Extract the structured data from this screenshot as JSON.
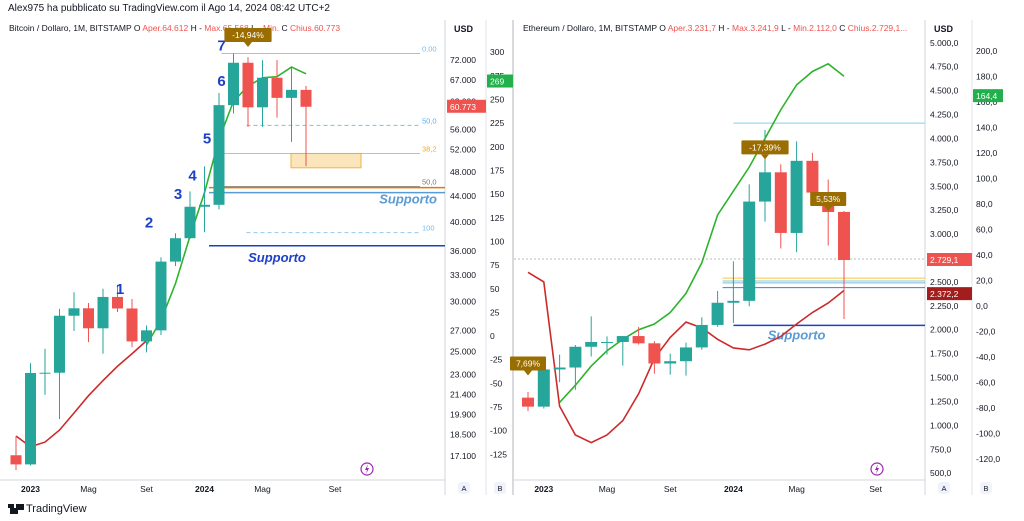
{
  "published_by": "Alex975 ha pubblicato su TradingView.com il Ago 14, 2024 08:42 UTC+2",
  "brand": "TradingView",
  "icons": {
    "brand": "tradingview-logo-icon",
    "flash": "lightning-icon"
  },
  "colors": {
    "up": "#26a69a",
    "down": "#ef5350",
    "green_line": "#2db32d",
    "red_line": "#cc2b2b",
    "support": "#1e40c8",
    "support_light": "#5b9bd5",
    "marker": "#9a6d00"
  },
  "chart_data": [
    {
      "type": "candlestick",
      "title": "Bitcoin / Dollaro, 1M, BITSTAMP",
      "ohlc_legend": {
        "o_label": "O",
        "open": "Aper.64.612",
        "h_label": "H",
        "high": "Max.65.568",
        "l_label": "L",
        "low": "Min.",
        "c_label": "C",
        "close": "Chius.60.773"
      },
      "y_axis_header": "USD",
      "x_ticks": [
        "2023",
        "Mag",
        "Set",
        "2024",
        "Mag",
        "Set"
      ],
      "y_ticks": [
        "72.000",
        "67.000",
        "62.000",
        "56.000",
        "52.000",
        "48.000",
        "44.000",
        "40.000",
        "36.000",
        "33.000",
        "30.000",
        "27.000",
        "25.000",
        "23.000",
        "21.400",
        "19.900",
        "18.500",
        "17.100"
      ],
      "y2_ticks": [
        "300",
        "275",
        "250",
        "225",
        "200",
        "175",
        "150",
        "125",
        "100",
        "75",
        "50",
        "25",
        "0",
        "-25",
        "-50",
        "-75",
        "-100",
        "-125"
      ],
      "log_scale": true,
      "ylim": [
        15800,
        78000
      ],
      "y2lim": [
        -150,
        315
      ],
      "dates": [
        "2022-12",
        "2023-01",
        "2023-02",
        "2023-03",
        "2023-04",
        "2023-05",
        "2023-06",
        "2023-07",
        "2023-08",
        "2023-09",
        "2023-10",
        "2023-11",
        "2023-12",
        "2024-01",
        "2024-02",
        "2024-03",
        "2024-04",
        "2024-05",
        "2024-06",
        "2024-07",
        "2024-08"
      ],
      "open": [
        17160,
        16600,
        23130,
        23150,
        28470,
        29250,
        27200,
        30480,
        29230,
        25940,
        27000,
        34650,
        37720,
        42280,
        42580,
        61130,
        71300,
        60650,
        67520,
        62770,
        64612
      ],
      "high": [
        18400,
        23960,
        25250,
        29190,
        31000,
        29820,
        31400,
        31860,
        30250,
        27480,
        35200,
        38400,
        44700,
        48960,
        63900,
        73750,
        72750,
        71950,
        71980,
        70000,
        65568
      ],
      "low": [
        16260,
        16530,
        21360,
        19570,
        26940,
        25870,
        24800,
        28860,
        25400,
        24930,
        26550,
        34100,
        37620,
        38550,
        41880,
        59320,
        56500,
        56500,
        58430,
        53500,
        49000
      ],
      "close": [
        16600,
        23130,
        23150,
        28470,
        29250,
        27200,
        30480,
        29230,
        25940,
        27000,
        34650,
        37720,
        42280,
        42580,
        61130,
        71300,
        60650,
        67520,
        62770,
        64620,
        60773
      ],
      "green_line": {
        "dates": [
          "2023-09",
          "2023-10",
          "2023-11",
          "2023-12",
          "2024-01",
          "2024-02",
          "2024-03",
          "2024-04",
          "2024-05",
          "2024-06",
          "2024-07",
          "2024-08"
        ],
        "values": [
          25600,
          28000,
          32000,
          38000,
          44500,
          54000,
          62000,
          65500,
          67500,
          67800,
          70200,
          68500
        ]
      },
      "red_line": {
        "dates": [
          "2022-12",
          "2023-01",
          "2023-02",
          "2023-03",
          "2023-04",
          "2023-05",
          "2023-06",
          "2023-07",
          "2023-08",
          "2023-09"
        ],
        "values": [
          18400,
          17700,
          18000,
          18800,
          20000,
          21300,
          22500,
          23700,
          24800,
          26000
        ]
      },
      "wave_labels": [
        {
          "text": "1",
          "date": "2023-08",
          "y": 30800
        },
        {
          "text": "2",
          "date": "2023-10",
          "y": 39200
        },
        {
          "text": "3",
          "date": "2023-12",
          "y": 43500
        },
        {
          "text": "4",
          "date": "2024-01",
          "y": 46500
        },
        {
          "text": "5",
          "date": "2024-02",
          "y": 53200
        },
        {
          "text": "6",
          "date": "2024-03",
          "y": 65500
        },
        {
          "text": "7",
          "date": "2024-03",
          "y": 74500
        }
      ],
      "fib_levels": [
        {
          "label": "0,00",
          "value": 73750
        },
        {
          "label": "50,0",
          "value": 56800
        },
        {
          "label": "38,2",
          "value": 51300
        },
        {
          "label": "50,0",
          "value": 45500
        },
        {
          "label": "100",
          "value": 38500
        }
      ],
      "support_lines": [
        {
          "label": "Supporto",
          "value": 44500
        },
        {
          "label": "Supporto",
          "value": 36700
        }
      ],
      "callout": {
        "text": "-14,94%",
        "date": "2024-04"
      },
      "price_badges": [
        {
          "text": "269",
          "y2": 269
        },
        {
          "text": "60.773",
          "value": 60773
        }
      ],
      "axis_buttons": [
        "A",
        "B"
      ]
    },
    {
      "type": "candlestick",
      "title": "Ethereum / Dollaro, 1M, BITSTAMP",
      "ohlc_legend": {
        "o_label": "O",
        "open": "Aper.3.231,7",
        "h_label": "H",
        "high": "Max.3.241,9",
        "l_label": "L",
        "low": "Min.2.112,0",
        "c_label": "C",
        "close": "Chius.2.729,1..."
      },
      "y_axis_header": "USD",
      "x_ticks": [
        "2023",
        "Mag",
        "Set",
        "2024",
        "Mag",
        "Set"
      ],
      "y_ticks": [
        "5.000,0",
        "4.750,0",
        "4.500,0",
        "4.250,0",
        "4.000,0",
        "3.750,0",
        "3.500,0",
        "3.250,0",
        "3.000,0",
        "2.750,0",
        "2.500,0",
        "2.250,0",
        "2.000,0",
        "1.750,0",
        "1.500,0",
        "1.250,0",
        "1.000,0",
        "750,0",
        "500,0"
      ],
      "y2_ticks": [
        "200,0",
        "180,0",
        "160,0",
        "140,0",
        "120,0",
        "100,0",
        "80,0",
        "60,0",
        "40,0",
        "20,0",
        "0,0",
        "-20,0",
        "-40,0",
        "-60,0",
        "-80,0",
        "-100,0",
        "-120,0"
      ],
      "ylim": [
        450,
        5050
      ],
      "y2lim": [
        -135,
        210
      ],
      "dates": [
        "2022-12",
        "2023-01",
        "2023-02",
        "2023-03",
        "2023-04",
        "2023-05",
        "2023-06",
        "2023-07",
        "2023-08",
        "2023-09",
        "2023-10",
        "2023-11",
        "2023-12",
        "2024-01",
        "2024-02",
        "2024-03",
        "2024-04",
        "2024-05",
        "2024-06",
        "2024-07",
        "2024-08"
      ],
      "open": [
        1290,
        1196,
        1585,
        1605,
        1822,
        1872,
        1872,
        1934,
        1858,
        1647,
        1671,
        1815,
        2050,
        2282,
        2302,
        3340,
        3646,
        3012,
        3766,
        3434,
        3231.7
      ],
      "high": [
        1350,
        1680,
        1740,
        1840,
        2140,
        1930,
        1930,
        2030,
        1880,
        1750,
        1865,
        2130,
        2405,
        2715,
        3520,
        4090,
        3730,
        3970,
        3850,
        3570,
        3241.9
      ],
      "low": [
        1150,
        1176,
        1452,
        1372,
        1720,
        1740,
        1625,
        1845,
        1540,
        1530,
        1520,
        1790,
        2030,
        2070,
        2245,
        3130,
        2850,
        2810,
        3340,
        2880,
        2112.0
      ],
      "close": [
        1196,
        1585,
        1605,
        1822,
        1872,
        1872,
        1934,
        1858,
        1647,
        1671,
        1815,
        2050,
        2282,
        2302,
        3340,
        3646,
        3012,
        3766,
        3434,
        3231,
        2729.1
      ],
      "green_line": {
        "dates": [
          "2023-02",
          "2023-03",
          "2023-04",
          "2023-05",
          "2023-06",
          "2023-07",
          "2023-08",
          "2023-09",
          "2023-10",
          "2023-11",
          "2023-12",
          "2024-01",
          "2024-02",
          "2024-03",
          "2024-04",
          "2024-05",
          "2024-06",
          "2024-07",
          "2024-08"
        ],
        "values": [
          1240,
          1420,
          1620,
          1780,
          1900,
          2000,
          2060,
          2180,
          2380,
          2700,
          3200,
          3450,
          3700,
          4000,
          4300,
          4560,
          4700,
          4780,
          4650
        ]
      },
      "red_line": {
        "dates": [
          "2022-12",
          "2023-01",
          "2023-02",
          "2023-03",
          "2023-04",
          "2023-05",
          "2023-06",
          "2023-07",
          "2023-08",
          "2023-09",
          "2023-10",
          "2023-11",
          "2023-12",
          "2024-01",
          "2024-02",
          "2024-03",
          "2024-04",
          "2024-05",
          "2024-06",
          "2024-07",
          "2024-08"
        ],
        "values": [
          2600,
          2500,
          1200,
          900,
          820,
          900,
          1050,
          1330,
          1700,
          1920,
          2080,
          2020,
          1900,
          1810,
          1790,
          1850,
          1930,
          2060,
          2180,
          2280,
          2410
        ]
      },
      "support_line": {
        "label": "Supporto",
        "value": 2045
      },
      "ref_lines": [
        {
          "value": 4160
        },
        {
          "value": 2740
        },
        {
          "value": 2540
        },
        {
          "value": 2510
        },
        {
          "value": 2490
        },
        {
          "value": 2440
        }
      ],
      "callouts": [
        {
          "text": "7,69%",
          "date": "2022-12"
        },
        {
          "text": "-17,39%",
          "date": "2024-03"
        },
        {
          "text": "5,53%",
          "date": "2024-07"
        }
      ],
      "price_badges": [
        {
          "text": "2.729,1",
          "value": 2729.1
        },
        {
          "text": "2.372,2",
          "value": 2372.2
        },
        {
          "text": "164,4",
          "y2": 164.4
        }
      ],
      "axis_buttons": [
        "A",
        "B"
      ]
    }
  ]
}
